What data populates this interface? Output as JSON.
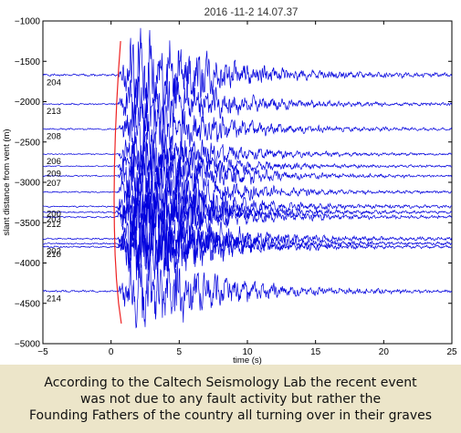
{
  "chart_data": {
    "type": "line",
    "title": "2016 -11-2  14.07.37",
    "xlabel": "time (s)",
    "ylabel": "slant distance from vent (m)",
    "xlim": [
      -5,
      25
    ],
    "ylim": [
      -5000,
      -1000
    ],
    "xticks": [
      -5,
      0,
      5,
      10,
      15,
      20,
      25
    ],
    "yticks": [
      -1000,
      -1500,
      -2000,
      -2500,
      -3000,
      -3500,
      -4000,
      -4500,
      -5000
    ],
    "series": [
      {
        "label": "204",
        "offset": -1670,
        "amp": 260,
        "seed": 1
      },
      {
        "label": "213",
        "offset": -2030,
        "amp": 200,
        "seed": 2
      },
      {
        "label": "208",
        "offset": -2340,
        "amp": 180,
        "seed": 3
      },
      {
        "label": "206",
        "offset": -2650,
        "amp": 150,
        "seed": 4
      },
      {
        "label": "209",
        "offset": -2800,
        "amp": 150,
        "seed": 5
      },
      {
        "label": "207",
        "offset": -2920,
        "amp": 170,
        "seed": 6
      },
      {
        "label": "",
        "offset": -3120,
        "amp": 170,
        "seed": 7
      },
      {
        "label": "200",
        "offset": -3300,
        "amp": 190,
        "seed": 8
      },
      {
        "label": "203",
        "offset": -3370,
        "amp": 190,
        "seed": 9
      },
      {
        "label": "212",
        "offset": -3430,
        "amp": 190,
        "seed": 10
      },
      {
        "label": "",
        "offset": -3700,
        "amp": 210,
        "seed": 11
      },
      {
        "label": "202",
        "offset": -3760,
        "amp": 200,
        "seed": 12
      },
      {
        "label": "210",
        "offset": -3800,
        "amp": 200,
        "seed": 13
      },
      {
        "label": "214",
        "offset": -4350,
        "amp": 230,
        "seed": 14
      }
    ],
    "onset_curve": {
      "x": [
        0.7,
        0.55,
        0.42,
        0.32,
        0.25,
        0.22,
        0.24,
        0.3,
        0.4,
        0.55,
        0.75
      ],
      "y": [
        -1250,
        -1600,
        -2000,
        -2400,
        -2800,
        -3200,
        -3550,
        -3900,
        -4200,
        -4500,
        -4750
      ]
    },
    "line_color": "#0000dd",
    "curve_color": "#ee2222",
    "grid": false,
    "legend": "none"
  },
  "caption": "According to the Caltech Seismology Lab the recent event\nwas not due to any fault activity but rather the\nFounding Fathers of the country all turning over in their graves"
}
